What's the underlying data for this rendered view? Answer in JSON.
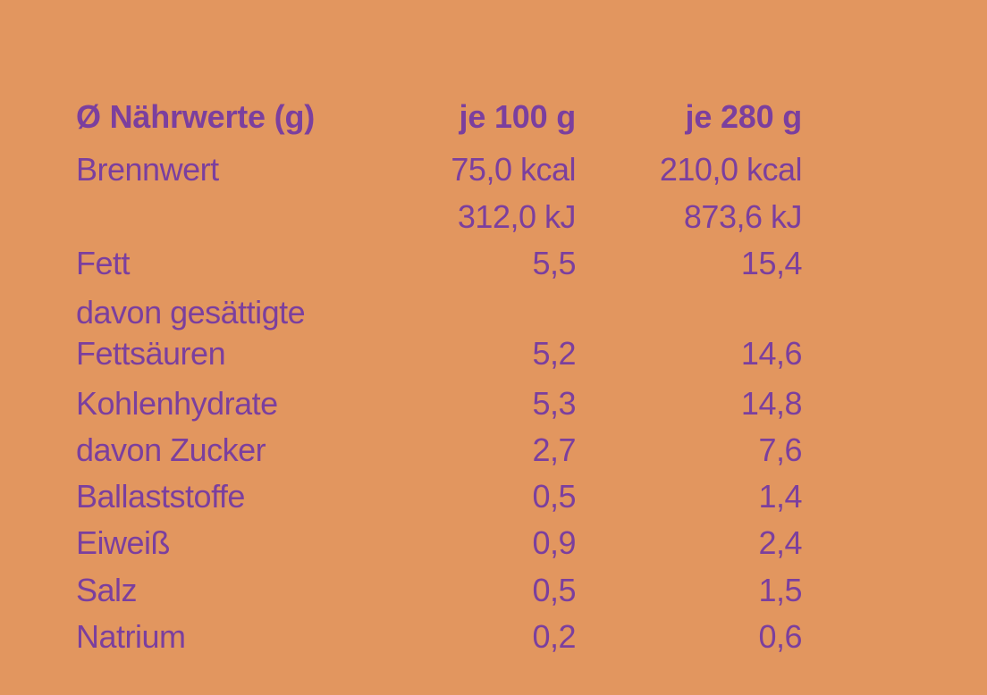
{
  "table": {
    "header": {
      "label": "Ø Nährwerte (g)",
      "col1": "je 100 g",
      "col2": "je 280 g"
    },
    "rows": [
      {
        "label": "Brennwert",
        "col1": "75,0 kcal",
        "col2": "210,0 kcal"
      },
      {
        "label": "",
        "col1": "312,0 kJ",
        "col2": "873,6 kJ"
      },
      {
        "label": "Fett",
        "col1": "5,5",
        "col2": "15,4"
      },
      {
        "label": "davon gesättigte",
        "col1": "",
        "col2": ""
      },
      {
        "label": "Fettsäuren",
        "col1": "5,2",
        "col2": "14,6"
      },
      {
        "label": "Kohlenhydrate",
        "col1": "5,3",
        "col2": "14,8"
      },
      {
        "label": "davon Zucker",
        "col1": "2,7",
        "col2": "7,6"
      },
      {
        "label": "Ballaststoffe",
        "col1": "0,5",
        "col2": "1,4"
      },
      {
        "label": "Eiweiß",
        "col1": "0,9",
        "col2": "2,4"
      },
      {
        "label": "Salz",
        "col1": "0,5",
        "col2": "1,5"
      },
      {
        "label": "Natrium",
        "col1": "0,2",
        "col2": "0,6"
      }
    ]
  },
  "colors": {
    "background": "#e2965f",
    "text": "#7b3f9e"
  }
}
